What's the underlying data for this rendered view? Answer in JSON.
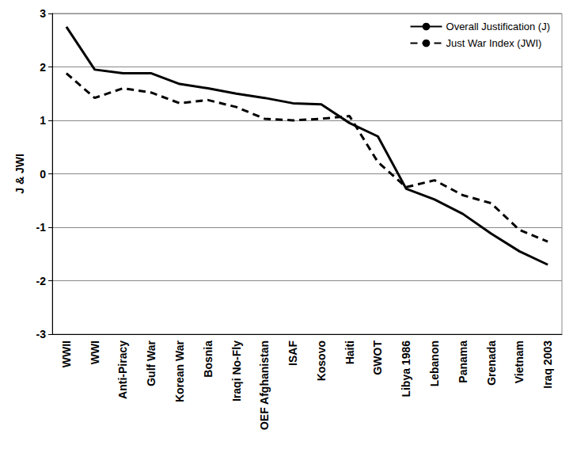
{
  "chart_data": {
    "type": "line",
    "y_label": "J & JWI",
    "categories": [
      "WWII",
      "WWI",
      "Anti-Piracy",
      "Gulf War",
      "Korean War",
      "Bosnia",
      "Iraqi No-Fly",
      "OEF Afghanistan",
      "ISAF",
      "Kosovo",
      "Haiti",
      "GWOT",
      "Libya 1986",
      "Lebanon",
      "Panama",
      "Grenada",
      "Vietnam",
      "Iraq 2003"
    ],
    "series": [
      {
        "name": "Overall Justification (J)",
        "color": "#000000",
        "line_style": "solid",
        "values": [
          2.75,
          1.95,
          1.88,
          1.88,
          1.68,
          1.6,
          1.5,
          1.42,
          1.32,
          1.3,
          0.95,
          0.7,
          -0.28,
          -0.48,
          -0.75,
          -1.12,
          -1.45,
          -1.7
        ]
      },
      {
        "name": "Just War Index (JWI)",
        "color": "#000000",
        "line_style": "dashed",
        "values": [
          1.88,
          1.42,
          1.6,
          1.52,
          1.32,
          1.38,
          1.25,
          1.03,
          1.0,
          1.03,
          1.08,
          0.22,
          -0.25,
          -0.12,
          -0.4,
          -0.55,
          -1.05,
          -1.27
        ]
      }
    ],
    "ylim": [
      -3,
      3
    ],
    "yticks": [
      -3,
      -2,
      -1,
      0,
      1,
      2,
      3
    ],
    "grid": true,
    "legend": "top-right"
  }
}
